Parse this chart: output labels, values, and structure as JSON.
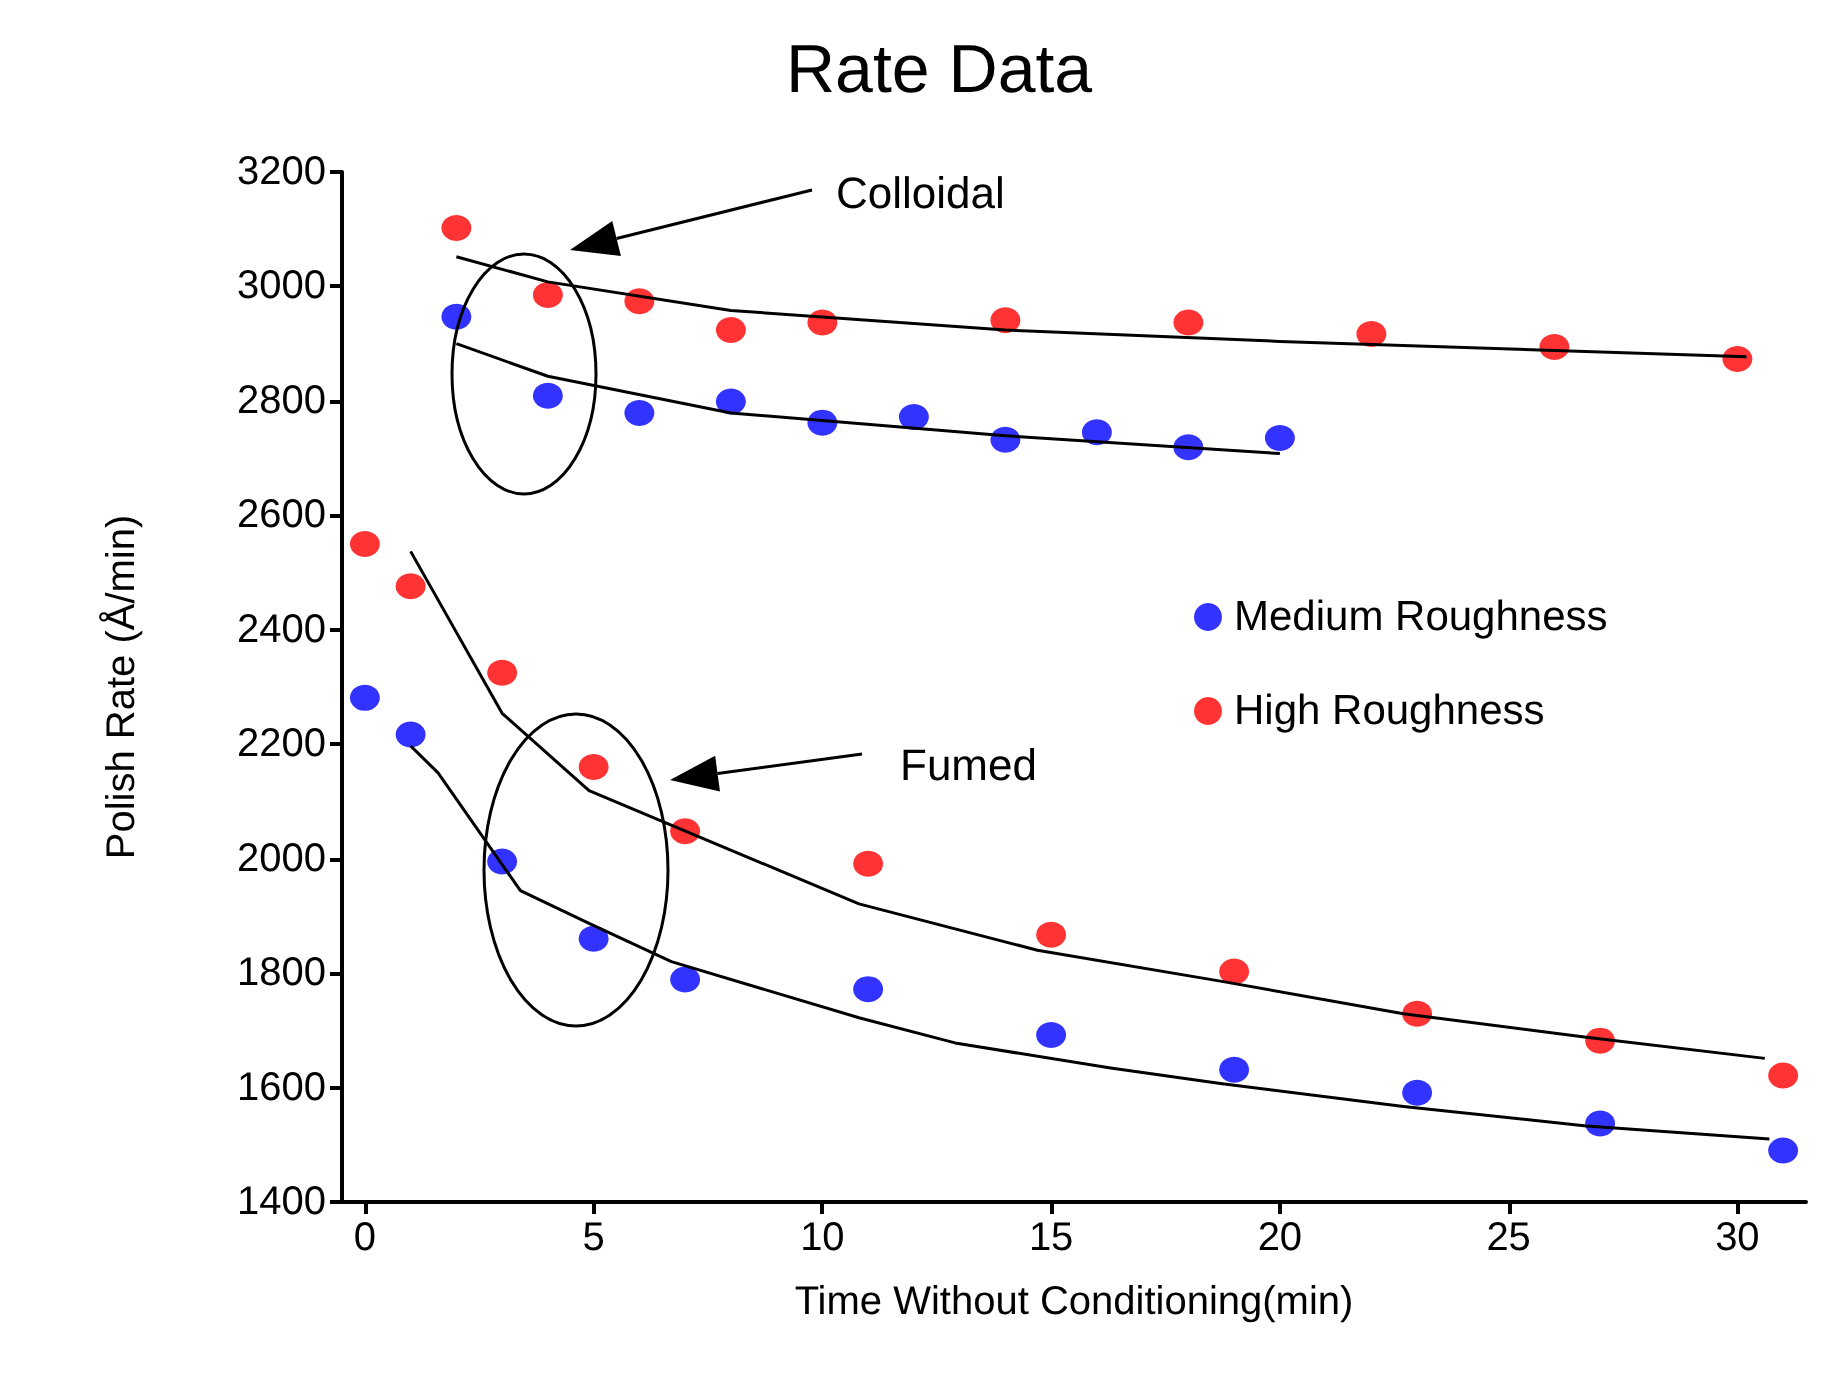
{
  "chart_data": {
    "type": "scatter",
    "title": "Rate Data",
    "xlabel": "Time Without Conditioning(min)",
    "ylabel": "Polish Rate (Å/min)",
    "xlim": [
      -0.5,
      31.5
    ],
    "xticks": [
      0,
      5,
      10,
      15,
      20,
      25,
      30
    ],
    "ylim": [
      1400,
      3200
    ],
    "yticks": [
      1400,
      1600,
      1800,
      2000,
      2200,
      2400,
      2600,
      2800,
      3000,
      3200
    ],
    "grid": false,
    "legend": "right",
    "marker": "circle",
    "annotations": [
      "Colloidal",
      "Fumed"
    ],
    "series": [
      {
        "name": "Medium Roughness",
        "color": "#0000ff",
        "x": [
          2,
          4,
          6,
          8,
          10,
          12,
          14,
          16,
          18,
          20,
          0,
          1,
          3,
          5,
          7,
          11,
          15,
          19,
          23,
          27,
          31
        ],
        "values": [
          2947,
          2809,
          2779,
          2799,
          2762,
          2772,
          2732,
          2745,
          2719,
          2735,
          2281,
          2217,
          1995,
          1860,
          1789,
          1772,
          1692,
          1631,
          1591,
          1537,
          1490
        ]
      },
      {
        "name": "High Roughness",
        "color": "#ff0000",
        "x": [
          2,
          4,
          6,
          8,
          10,
          14,
          18,
          22,
          26,
          30,
          0,
          1,
          3,
          5,
          7,
          11,
          15,
          19,
          23,
          27,
          31
        ],
        "values": [
          3102,
          2985,
          2974,
          2924,
          2937,
          2941,
          2937,
          2917,
          2894,
          2873,
          2550,
          2476,
          2325,
          2160,
          2048,
          1991,
          1867,
          1803,
          1729,
          1682,
          1621
        ]
      },
      {
        "type": "line",
        "color": "#000000",
        "marker": "none",
        "x": [
          2,
          4,
          8,
          14,
          20,
          30.2
        ],
        "values": [
          3052,
          3008,
          2958,
          2924,
          2904,
          2877
        ]
      },
      {
        "type": "line",
        "color": "#000000",
        "marker": "none",
        "x": [
          2,
          4,
          8,
          14,
          20
        ],
        "values": [
          2900,
          2843,
          2779,
          2739,
          2708
        ]
      },
      {
        "type": "line",
        "color": "#000000",
        "marker": "none",
        "x": [
          1,
          3,
          4.9,
          10.8,
          14.7,
          18.7,
          22.7,
          26.7,
          30.6
        ],
        "values": [
          2537,
          2254,
          2119,
          1921,
          1840,
          1786,
          1729,
          1688,
          1651
        ]
      },
      {
        "type": "line",
        "color": "#000000",
        "marker": "none",
        "x": [
          1,
          1.6,
          3.4,
          4.9,
          6.7,
          10.8,
          12.9,
          16.3,
          18.7,
          22.7,
          26.7,
          30.7
        ],
        "values": [
          2197,
          2150,
          1944,
          1887,
          1820,
          1722,
          1678,
          1634,
          1607,
          1567,
          1533,
          1510
        ]
      }
    ]
  }
}
